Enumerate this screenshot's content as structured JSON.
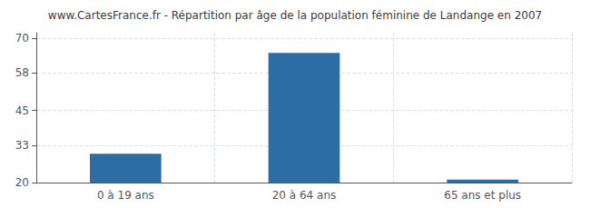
{
  "chart_data": {
    "type": "bar",
    "title": "www.CartesFrance.fr - Répartition par âge de la population féminine de Landange en 2007",
    "categories": [
      "0 à 19 ans",
      "20 à 64 ans",
      "65 ans et plus"
    ],
    "values": [
      30,
      65,
      21
    ],
    "color": "#2e6da4",
    "ylim": [
      20,
      72
    ],
    "yticks": [
      20,
      33,
      45,
      58,
      70
    ],
    "grid": true
  }
}
